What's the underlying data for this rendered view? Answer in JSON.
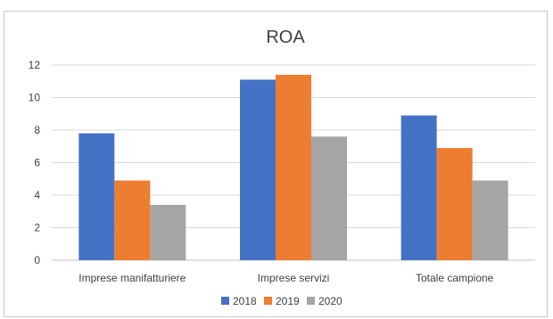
{
  "chart_data": {
    "type": "bar",
    "title": "ROA",
    "categories": [
      "Imprese manifatturiere",
      "Imprese servizi",
      "Totale campione"
    ],
    "series": [
      {
        "name": "2018",
        "values": [
          7.8,
          11.1,
          8.9
        ],
        "color": "#4472c4"
      },
      {
        "name": "2019",
        "values": [
          4.9,
          11.4,
          6.9
        ],
        "color": "#ed7d31"
      },
      {
        "name": "2020",
        "values": [
          3.4,
          7.6,
          4.9
        ],
        "color": "#a5a5a5"
      }
    ],
    "y_ticks": [
      "0",
      "2",
      "4",
      "6",
      "8",
      "10",
      "12"
    ],
    "ylim": [
      0,
      12
    ],
    "grid": true,
    "legend": "bottom"
  }
}
